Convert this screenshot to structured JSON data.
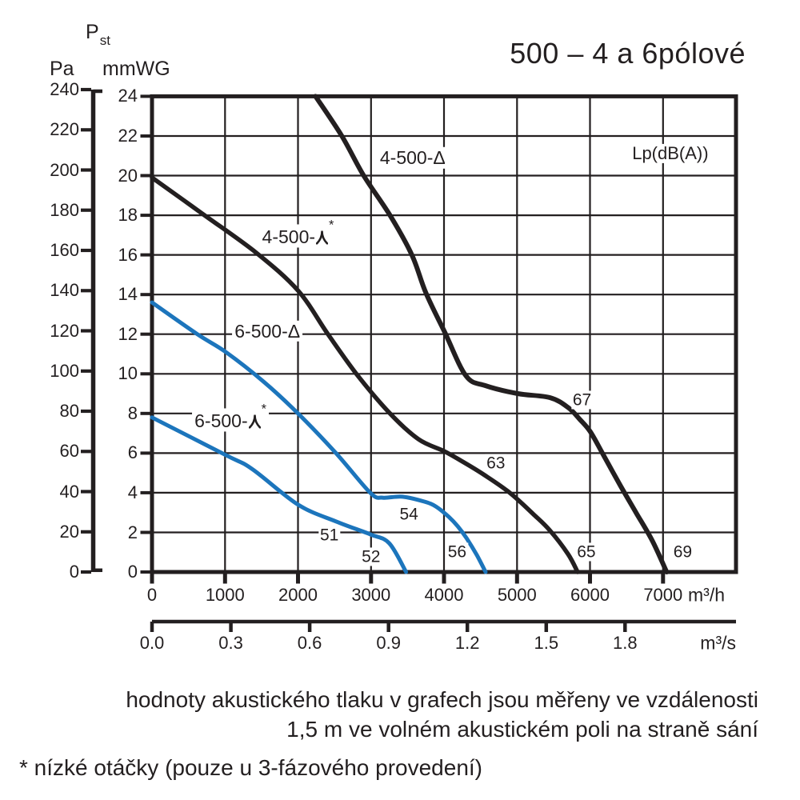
{
  "header": {
    "pressure_symbol_main": "P",
    "pressure_symbol_sub": "st",
    "unit_pa": "Pa",
    "unit_mmwg": "mmWG",
    "title": "500 – 4 a 6pólové"
  },
  "chart_data": {
    "type": "line",
    "title": "500 – 4 a 6pólové",
    "xlabel": "m³/h",
    "ylabel": "mmWG",
    "grid": true,
    "x_axis_primary": {
      "unit": "m³/h",
      "ticks": [
        0,
        1000,
        2000,
        3000,
        4000,
        5000,
        6000,
        7000
      ],
      "max": 8000
    },
    "x_axis_secondary": {
      "unit": "m³/s",
      "tick_labels": [
        "0.0",
        "0.3",
        "0.6",
        "0.9",
        "1.2",
        "1.5",
        "1.8"
      ],
      "primary_per_unit": 3600
    },
    "y_axis_mmwg": {
      "unit": "mmWG",
      "min": 0,
      "max": 24,
      "tick_step": 2
    },
    "y_axis_pa": {
      "unit": "Pa",
      "min": 0,
      "max": 240,
      "tick_step": 20
    },
    "legend_annotation": {
      "text": "Lp(dB(A))",
      "x": 7100,
      "y": 21.1
    },
    "series": [
      {
        "name": "4-500-Δ",
        "color": "#231f20",
        "label": {
          "prefix": "4-500-",
          "symbol": "delta",
          "star_note": false,
          "x": 3570,
          "y": 20.9
        },
        "points": [
          [
            2240,
            24
          ],
          [
            2600,
            22
          ],
          [
            2900,
            20
          ],
          [
            3260,
            18
          ],
          [
            3560,
            16
          ],
          [
            3750,
            14.1
          ],
          [
            4010,
            12.1
          ],
          [
            4300,
            9.9
          ],
          [
            4570,
            9.4
          ],
          [
            5010,
            9.0
          ],
          [
            5450,
            8.8
          ],
          [
            5700,
            8.3
          ],
          [
            5860,
            7.7
          ],
          [
            6000,
            7.1
          ],
          [
            6170,
            6.0
          ],
          [
            6410,
            4.4
          ],
          [
            6630,
            3.0
          ],
          [
            6850,
            1.6
          ],
          [
            7050,
            0
          ]
        ],
        "noise_labels_dba": [
          {
            "value": "67",
            "x": 5890,
            "y": 8.7
          },
          {
            "value": "69",
            "x": 7270,
            "y": 1.0
          }
        ]
      },
      {
        "name": "4-500-⅄*",
        "color": "#231f20",
        "label": {
          "prefix": "4-500-",
          "symbol": "star",
          "star_note": true,
          "x": 2000,
          "y": 16.95
        },
        "points": [
          [
            0,
            19.9
          ],
          [
            720,
            18
          ],
          [
            1430,
            16.1
          ],
          [
            2000,
            14.2
          ],
          [
            2410,
            12
          ],
          [
            2820,
            9.9
          ],
          [
            3260,
            8.0
          ],
          [
            3650,
            6.7
          ],
          [
            4000,
            6.1
          ],
          [
            4240,
            5.6
          ],
          [
            4550,
            4.9
          ],
          [
            4900,
            4.0
          ],
          [
            5230,
            2.9
          ],
          [
            5450,
            2.1
          ],
          [
            5700,
            0.9
          ],
          [
            5830,
            0
          ]
        ],
        "noise_labels_dba": [
          {
            "value": "63",
            "x": 4710,
            "y": 5.5
          },
          {
            "value": "65",
            "x": 5950,
            "y": 1.0
          }
        ]
      },
      {
        "name": "6-500-Δ",
        "color": "#1c75bc",
        "label": {
          "prefix": "6-500-",
          "symbol": "delta",
          "star_note": false,
          "x": 1580,
          "y": 12.15
        },
        "points": [
          [
            0,
            13.6
          ],
          [
            620,
            12
          ],
          [
            1010,
            11.1
          ],
          [
            1530,
            9.6
          ],
          [
            2000,
            8.0
          ],
          [
            2520,
            6.0
          ],
          [
            2990,
            4.0
          ],
          [
            3160,
            3.75
          ],
          [
            3430,
            3.8
          ],
          [
            3730,
            3.55
          ],
          [
            3890,
            3.3
          ],
          [
            4060,
            2.8
          ],
          [
            4190,
            2.3
          ],
          [
            4310,
            1.7
          ],
          [
            4450,
            0.85
          ],
          [
            4570,
            0
          ]
        ],
        "noise_labels_dba": [
          {
            "value": "54",
            "x": 3520,
            "y": 2.9
          },
          {
            "value": "56",
            "x": 4180,
            "y": 1.0
          }
        ]
      },
      {
        "name": "6-500-⅄*",
        "color": "#1c75bc",
        "label": {
          "prefix": "6-500-",
          "symbol": "star",
          "star_note": true,
          "x": 1075,
          "y": 7.67
        },
        "points": [
          [
            0,
            7.8
          ],
          [
            1010,
            5.9
          ],
          [
            1370,
            5.2
          ],
          [
            2000,
            3.4
          ],
          [
            2520,
            2.55
          ],
          [
            2990,
            1.9
          ],
          [
            3250,
            1.45
          ],
          [
            3480,
            0
          ]
        ],
        "noise_labels_dba": [
          {
            "value": "51",
            "x": 2430,
            "y": 1.85
          },
          {
            "value": "52",
            "x": 3000,
            "y": 0.75
          }
        ]
      }
    ]
  },
  "notes": {
    "line1": "hodnoty akustického tlaku v grafech jsou měřeny ve vzdálenosti",
    "line2": "1,5 m ve volném akustickém poli na straně sání",
    "footnote": "* nízké otáčky (pouze u 3-fázového provedení)"
  }
}
